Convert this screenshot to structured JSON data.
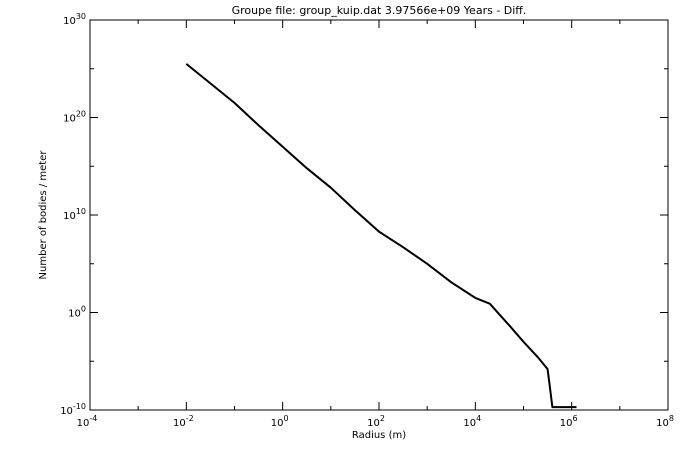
{
  "chart_data": {
    "type": "line",
    "title": "Groupe file: group_kuip.dat  3.97566e+09 Years - Diff.",
    "xlabel": "Radius (m)",
    "ylabel": "Number of bodies / meter",
    "xscale": "log",
    "yscale": "log",
    "xlim_exp": [
      -4,
      8
    ],
    "ylim_exp": [
      -10,
      30
    ],
    "x_ticks": [
      {
        "base": "10",
        "exp": "-4",
        "e": -4
      },
      {
        "base": "10",
        "exp": "-2",
        "e": -2
      },
      {
        "base": "10",
        "exp": "0",
        "e": 0
      },
      {
        "base": "10",
        "exp": "2",
        "e": 2
      },
      {
        "base": "10",
        "exp": "4",
        "e": 4
      },
      {
        "base": "10",
        "exp": "6",
        "e": 6
      },
      {
        "base": "10",
        "exp": "8",
        "e": 8
      }
    ],
    "y_ticks": [
      {
        "base": "10",
        "exp": "-10",
        "e": -10
      },
      {
        "base": "10",
        "exp": "0",
        "e": 0
      },
      {
        "base": "10",
        "exp": "10",
        "e": 10
      },
      {
        "base": "10",
        "exp": "20",
        "e": 20
      },
      {
        "base": "10",
        "exp": "30",
        "e": 30
      }
    ],
    "series": [
      {
        "color": "#000000",
        "log10_x": [
          -2.0,
          -1.5,
          -1.0,
          -0.5,
          0.0,
          0.5,
          1.0,
          1.5,
          2.0,
          2.5,
          3.0,
          3.5,
          4.0,
          4.3,
          4.5,
          4.7,
          5.0,
          5.3,
          5.5,
          5.6,
          5.7,
          5.85,
          6.0,
          6.1
        ],
        "log10_y": [
          25.5,
          23.5,
          21.5,
          19.2,
          17.0,
          14.8,
          12.8,
          10.5,
          8.3,
          6.7,
          5.0,
          3.1,
          1.5,
          0.9,
          -0.2,
          -1.3,
          -3.0,
          -4.6,
          -5.8,
          -9.7,
          -9.7,
          -9.7,
          -9.7,
          -9.7
        ]
      }
    ],
    "grid": false,
    "legend": "none"
  }
}
